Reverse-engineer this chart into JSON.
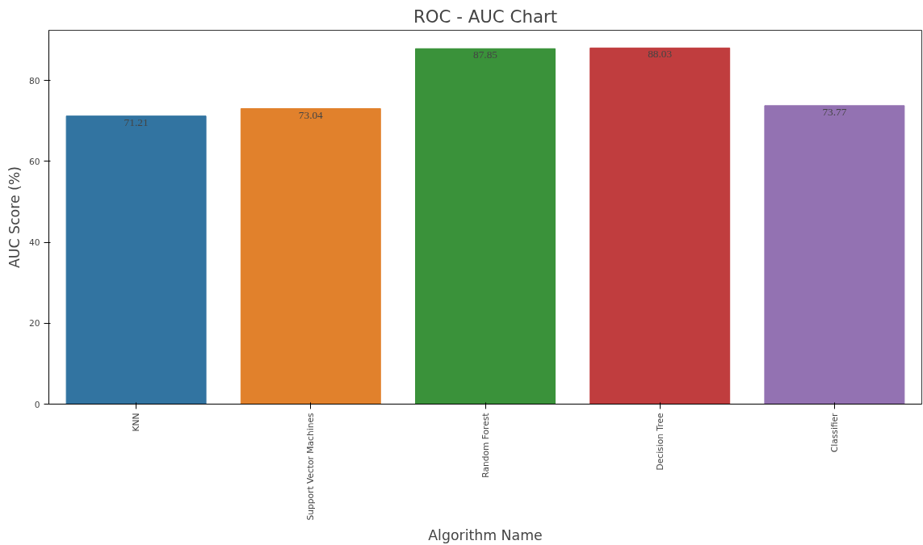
{
  "chart_data": {
    "type": "bar",
    "title": "ROC - AUC Chart",
    "xlabel": "Algorithm Name",
    "ylabel": "AUC Score (%)",
    "categories": [
      "KNN",
      "Support Vector Machines",
      "Random Forest",
      "Decision Tree",
      "Classifier"
    ],
    "values": [
      71.21,
      73.04,
      87.85,
      88.03,
      73.77
    ],
    "colors": [
      "#3274a1",
      "#e1812c",
      "#3a923a",
      "#c03d3e",
      "#9372b2"
    ],
    "ylim": [
      0,
      92.4
    ],
    "yticks": [
      0,
      20,
      40,
      60,
      80
    ],
    "data_labels": true,
    "grid": false
  }
}
